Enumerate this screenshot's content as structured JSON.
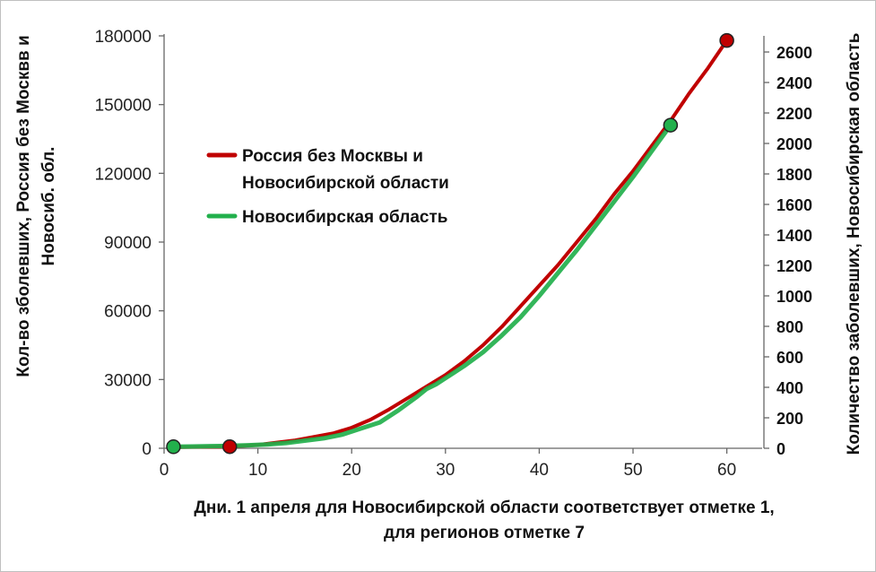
{
  "chart_data": {
    "type": "line",
    "xlabel_lines": [
      "Дни. 1 апреля для Новосибирской области соответствует отметке 1,",
      "для регионов отметке 7"
    ],
    "ylabel_left_lines": [
      "Кол-во зболевших, Россия без Москвв и",
      "Новосиб. обл."
    ],
    "ylabel_right": "Количество заболевших, Новосибирская область",
    "xlim": [
      0,
      63
    ],
    "x_ticks": [
      0,
      10,
      20,
      30,
      40,
      50,
      60
    ],
    "ylim_left": [
      0,
      180000
    ],
    "y_ticks_left": [
      0,
      30000,
      60000,
      90000,
      120000,
      150000,
      180000
    ],
    "ylim_right": [
      0,
      2700
    ],
    "y_ticks_right": [
      0,
      200,
      400,
      600,
      800,
      1000,
      1200,
      1400,
      1600,
      1800,
      2000,
      2200,
      2400,
      2600
    ],
    "grid": false,
    "legend_position": "upper-left",
    "series": [
      {
        "name": "Россия без Москвы и Новосибирской области",
        "legend_lines": [
          "Россия без Москвы и",
          "Новосибирской области"
        ],
        "color": "#c00000",
        "axis": "left",
        "x": [
          1,
          7,
          10,
          12,
          14,
          16,
          18,
          20,
          22,
          24,
          26,
          28,
          30,
          32,
          34,
          36,
          38,
          40,
          42,
          44,
          46,
          48,
          50,
          52,
          54,
          56,
          58,
          60
        ],
        "y": [
          500,
          700,
          1500,
          2500,
          3500,
          5000,
          6500,
          9000,
          12500,
          17000,
          22000,
          27000,
          32000,
          38000,
          45000,
          53000,
          62000,
          71000,
          80000,
          90000,
          100000,
          111000,
          121000,
          132000,
          143000,
          155000,
          166000,
          178000
        ],
        "markers": [
          {
            "x": 7,
            "y": 700
          },
          {
            "x": 60,
            "y": 178000
          }
        ]
      },
      {
        "name": "Новосибирская область",
        "legend_lines": [
          "Новосибирская область"
        ],
        "color": "#22b04c",
        "axis": "right",
        "x": [
          1,
          3,
          5,
          7,
          9,
          11,
          13,
          15,
          17,
          19,
          21,
          23,
          25,
          27,
          28,
          29,
          30,
          32,
          34,
          36,
          38,
          40,
          42,
          44,
          46,
          48,
          50,
          52,
          54
        ],
        "y": [
          10,
          12,
          14,
          16,
          20,
          25,
          35,
          50,
          65,
          90,
          130,
          170,
          250,
          340,
          390,
          420,
          460,
          540,
          630,
          740,
          860,
          1000,
          1150,
          1300,
          1460,
          1620,
          1780,
          1950,
          2120
        ],
        "markers": [
          {
            "x": 1,
            "y": 10
          },
          {
            "x": 54,
            "y": 2120
          }
        ]
      }
    ]
  }
}
